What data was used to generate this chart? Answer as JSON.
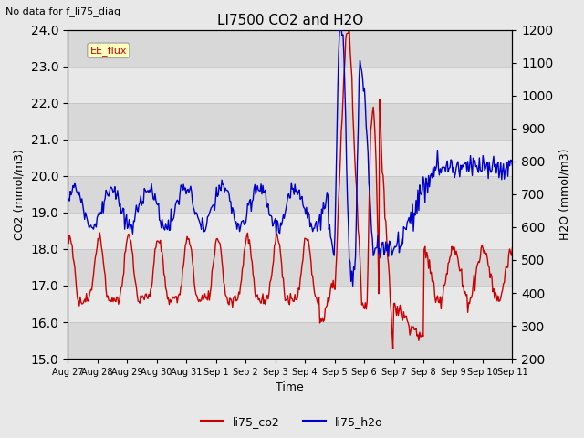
{
  "title": "LI7500 CO2 and H2O",
  "suptitle": "No data for f_li75_diag",
  "xlabel": "Time",
  "ylabel_left": "CO2 (mmol/m3)",
  "ylabel_right": "H2O (mmol/m3)",
  "ylim_left": [
    15.0,
    24.0
  ],
  "ylim_right": [
    200,
    1200
  ],
  "yticks_left": [
    15.0,
    16.0,
    17.0,
    18.0,
    19.0,
    20.0,
    21.0,
    22.0,
    23.0,
    24.0
  ],
  "yticks_right": [
    200,
    300,
    400,
    500,
    600,
    700,
    800,
    900,
    1000,
    1100,
    1200
  ],
  "color_co2": "#cc0000",
  "color_h2o": "#0000cc",
  "legend_label_co2": "li75_co2",
  "legend_label_h2o": "li75_h2o",
  "annotation_text": "EE_flux",
  "background_color": "#e8e8e8",
  "stripe_color": "#d0d0d0",
  "grid_color": "#c8c8c8",
  "linewidth": 1.0,
  "xtick_labels": [
    "Aug 27",
    "Aug 28",
    "Aug 29",
    "Aug 30",
    "Aug 31",
    "Sep 1",
    "Sep 2",
    "Sep 3",
    "Sep 4",
    "Sep 5",
    "Sep 6",
    "Sep 7",
    "Sep 8",
    "Sep 9",
    "Sep 10",
    "Sep 11"
  ],
  "n_points": 500
}
